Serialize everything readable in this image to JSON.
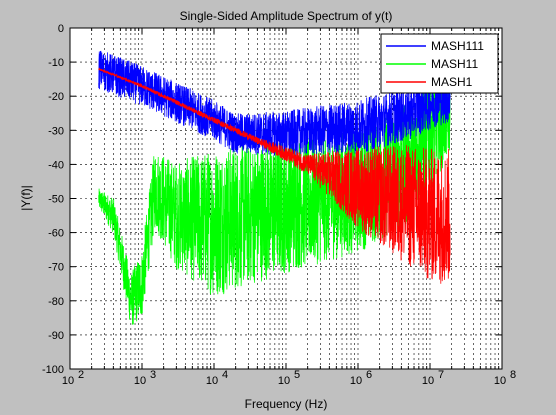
{
  "figure": {
    "background": "#c0c0c0",
    "axes_background": "#ffffff"
  },
  "chart_data": {
    "type": "line",
    "title": "Single-Sided Amplitude Spectrum of y(t)",
    "xlabel": "Frequency (Hz)",
    "ylabel": "|Y(f)|",
    "xscale": "log",
    "xlim": [
      100,
      100000000
    ],
    "ylim": [
      -100,
      0
    ],
    "grid": "on (dashed, major and minor)",
    "legend_position": "top-right",
    "x_tick_labels": [
      {
        "base": "10",
        "exp": "2"
      },
      {
        "base": "10",
        "exp": "3"
      },
      {
        "base": "10",
        "exp": "4"
      },
      {
        "base": "10",
        "exp": "5"
      },
      {
        "base": "10",
        "exp": "6"
      },
      {
        "base": "10",
        "exp": "7"
      },
      {
        "base": "10",
        "exp": "8"
      }
    ],
    "y_tick_values": [
      0,
      -10,
      -20,
      -30,
      -40,
      -50,
      -60,
      -70,
      -80,
      -90,
      -100
    ],
    "series": [
      {
        "name": "MASH111",
        "color": "#0000ff",
        "trend_points": [
          [
            250,
            -12
          ],
          [
            1000,
            -17
          ],
          [
            10000,
            -27
          ],
          [
            20000,
            -31
          ],
          [
            100000,
            -31
          ],
          [
            1000000,
            -29
          ],
          [
            5000000,
            -25
          ],
          [
            12000000,
            -21
          ],
          [
            19000000,
            -20
          ]
        ],
        "noise_band": [
          [
            25000,
            6
          ],
          [
            1000000,
            8
          ],
          [
            19000000,
            8
          ]
        ]
      },
      {
        "name": "MASH11",
        "color": "#00ff00",
        "trend_points": [
          [
            250,
            -50
          ],
          [
            400,
            -55
          ],
          [
            700,
            -80
          ],
          [
            1000,
            -75
          ],
          [
            1500,
            -47
          ],
          [
            3000,
            -55
          ],
          [
            10000,
            -57
          ],
          [
            100000,
            -52
          ],
          [
            1000000,
            -48
          ],
          [
            5000000,
            -40
          ],
          [
            10000000,
            -30
          ],
          [
            19000000,
            -25
          ]
        ],
        "noise_band": [
          [
            250,
            3
          ],
          [
            1500,
            12
          ],
          [
            10000,
            22
          ],
          [
            100000,
            20
          ],
          [
            1000000,
            18
          ],
          [
            10000000,
            18
          ],
          [
            19000000,
            12
          ]
        ]
      },
      {
        "name": "MASH1",
        "color": "#ff0000",
        "trend_points": [
          [
            250,
            -12
          ],
          [
            1000,
            -17
          ],
          [
            10000,
            -27
          ],
          [
            100000,
            -37
          ],
          [
            1000000,
            -47
          ],
          [
            5000000,
            -52
          ],
          [
            10000000,
            -55
          ],
          [
            19000000,
            -55
          ]
        ],
        "noise_band": [
          [
            250,
            0.3
          ],
          [
            40000,
            1
          ],
          [
            200000,
            3
          ],
          [
            1000000,
            12
          ],
          [
            5000000,
            18
          ],
          [
            10000000,
            20
          ],
          [
            19000000,
            20
          ]
        ]
      }
    ]
  }
}
